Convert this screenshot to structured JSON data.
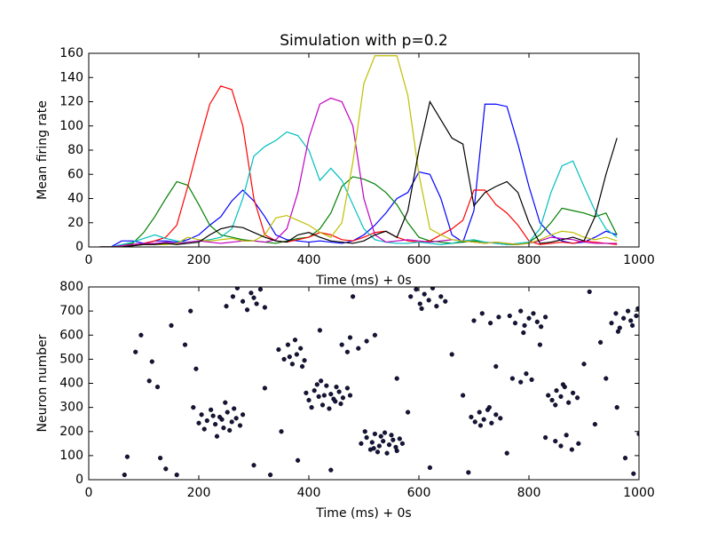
{
  "chart_data": [
    {
      "type": "line",
      "title": "Simulation with p=0.2",
      "x_label": "Time (ms) + 0s",
      "y_label": "Mean firing rate",
      "x": [
        20,
        40,
        60,
        80,
        100,
        120,
        140,
        160,
        180,
        200,
        220,
        240,
        260,
        280,
        300,
        320,
        340,
        360,
        380,
        400,
        420,
        440,
        460,
        480,
        500,
        520,
        540,
        560,
        580,
        600,
        620,
        640,
        660,
        680,
        700,
        720,
        740,
        760,
        780,
        800,
        820,
        840,
        860,
        880,
        900,
        920,
        940,
        960
      ],
      "series": [
        {
          "color": "#0000ff",
          "values": [
            0,
            0,
            5,
            5,
            3,
            5,
            5,
            4,
            6,
            10,
            18,
            25,
            38,
            47,
            38,
            25,
            10,
            6,
            5,
            4,
            5,
            4,
            3,
            5,
            10,
            18,
            28,
            40,
            45,
            62,
            60,
            40,
            10,
            4,
            30,
            118,
            118,
            116,
            85,
            50,
            20,
            10,
            5,
            3,
            4,
            8,
            13,
            10
          ]
        },
        {
          "color": "#008000",
          "values": [
            0,
            0,
            1,
            3,
            12,
            25,
            40,
            54,
            51,
            35,
            18,
            10,
            8,
            6,
            5,
            4,
            3,
            5,
            7,
            8,
            15,
            28,
            50,
            58,
            56,
            52,
            45,
            35,
            20,
            8,
            5,
            4,
            3,
            4,
            5,
            4,
            3,
            2,
            2,
            4,
            10,
            20,
            32,
            30,
            28,
            25,
            28,
            10
          ]
        },
        {
          "color": "#ff0000",
          "values": [
            0,
            0,
            1,
            2,
            3,
            5,
            8,
            18,
            50,
            85,
            118,
            133,
            130,
            100,
            40,
            10,
            5,
            4,
            6,
            8,
            12,
            10,
            6,
            5,
            8,
            12,
            13,
            8,
            5,
            4,
            5,
            10,
            15,
            22,
            47,
            47,
            35,
            28,
            18,
            5,
            2,
            3,
            4,
            3,
            5,
            4,
            3,
            2
          ]
        },
        {
          "color": "#00bfbf",
          "values": [
            0,
            0,
            2,
            4,
            7,
            10,
            7,
            5,
            4,
            5,
            6,
            8,
            15,
            40,
            75,
            83,
            88,
            95,
            92,
            80,
            55,
            65,
            55,
            35,
            15,
            6,
            4,
            3,
            3,
            4,
            3,
            2,
            3,
            5,
            6,
            4,
            3,
            2,
            3,
            4,
            15,
            45,
            67,
            71,
            50,
            30,
            15,
            8
          ]
        },
        {
          "color": "#bf00bf",
          "values": [
            0,
            0,
            1,
            2,
            3,
            3,
            4,
            3,
            4,
            5,
            4,
            3,
            4,
            5,
            5,
            4,
            6,
            15,
            45,
            90,
            118,
            123,
            120,
            100,
            40,
            10,
            4,
            5,
            6,
            5,
            4,
            5,
            6,
            5,
            4,
            3,
            4,
            3,
            2,
            3,
            5,
            8,
            7,
            6,
            4,
            3,
            3,
            3
          ]
        },
        {
          "color": "#bfbf00",
          "values": [
            0,
            0,
            0,
            1,
            2,
            2,
            2,
            3,
            8,
            6,
            5,
            6,
            7,
            5,
            5,
            10,
            24,
            26,
            22,
            18,
            12,
            8,
            20,
            70,
            135,
            158,
            158,
            158,
            125,
            60,
            15,
            10,
            6,
            5,
            4,
            3,
            4,
            3,
            2,
            3,
            6,
            10,
            13,
            12,
            8,
            6,
            8,
            5
          ]
        },
        {
          "color": "#000000",
          "values": [
            0,
            0,
            0,
            1,
            2,
            2,
            3,
            2,
            3,
            4,
            10,
            15,
            17,
            16,
            12,
            8,
            5,
            4,
            10,
            12,
            8,
            5,
            4,
            3,
            5,
            10,
            13,
            8,
            30,
            80,
            120,
            105,
            90,
            85,
            34,
            45,
            50,
            54,
            45,
            20,
            3,
            4,
            6,
            8,
            5,
            25,
            60,
            90
          ]
        }
      ],
      "xlim": [
        0,
        1000
      ],
      "xticks": [
        0,
        200,
        400,
        600,
        800,
        1000
      ],
      "ylim": [
        0,
        160
      ],
      "yticks": [
        0,
        20,
        40,
        60,
        80,
        100,
        120,
        140,
        160
      ]
    },
    {
      "type": "scatter",
      "x_label": "Time (ms) + 0s",
      "y_label": "Neuron number",
      "color": "#14143c",
      "x": [
        205,
        215,
        222,
        230,
        238,
        245,
        252,
        260,
        268,
        275,
        190,
        210,
        226,
        242,
        256,
        264,
        233,
        248,
        200,
        280,
        400,
        410,
        418,
        425,
        432,
        440,
        448,
        455,
        462,
        470,
        405,
        422,
        437,
        450,
        428,
        445,
        415,
        458,
        395,
        475,
        495,
        505,
        512,
        520,
        528,
        535,
        542,
        550,
        558,
        565,
        502,
        515,
        525,
        538,
        546,
        553,
        518,
        531,
        560,
        570,
        585,
        595,
        602,
        610,
        618,
        625,
        632,
        640,
        648,
        605,
        695,
        702,
        710,
        718,
        725,
        732,
        740,
        748,
        712,
        728,
        765,
        775,
        785,
        792,
        800,
        808,
        815,
        822,
        830,
        790,
        835,
        842,
        850,
        858,
        865,
        872,
        880,
        888,
        848,
        862,
        950,
        958,
        965,
        972,
        980,
        988,
        995,
        962,
        985,
        998,
        250,
        262,
        270,
        280,
        288,
        295,
        305,
        312,
        320,
        300,
        345,
        355,
        362,
        370,
        378,
        385,
        392,
        365,
        375,
        388,
        770,
        785,
        795,
        805,
        848,
        858,
        868,
        878,
        830,
        890,
        700,
        715,
        730,
        745,
        460,
        475,
        490,
        505,
        520,
        470,
        65,
        70,
        85,
        95,
        110,
        115,
        125,
        130,
        140,
        150,
        160,
        175,
        185,
        195,
        300,
        320,
        330,
        350,
        380,
        420,
        440,
        480,
        560,
        580,
        620,
        660,
        680,
        690,
        740,
        760,
        820,
        900,
        920,
        940,
        960,
        975,
        990,
        1000,
        910,
        930
      ],
      "values": [
        270,
        245,
        290,
        230,
        260,
        215,
        280,
        240,
        255,
        225,
        300,
        210,
        265,
        250,
        205,
        295,
        180,
        320,
        235,
        270,
        330,
        370,
        345,
        310,
        390,
        355,
        325,
        365,
        340,
        380,
        300,
        410,
        295,
        385,
        350,
        335,
        395,
        315,
        360,
        350,
        150,
        175,
        125,
        190,
        140,
        160,
        110,
        185,
        135,
        170,
        200,
        155,
        115,
        195,
        145,
        165,
        130,
        180,
        120,
        150,
        760,
        790,
        730,
        770,
        745,
        795,
        720,
        760,
        740,
        710,
        260,
        240,
        280,
        250,
        290,
        235,
        270,
        255,
        225,
        300,
        680,
        650,
        700,
        640,
        670,
        690,
        655,
        635,
        675,
        610,
        350,
        330,
        370,
        345,
        385,
        320,
        360,
        340,
        310,
        395,
        650,
        690,
        630,
        670,
        700,
        640,
        680,
        615,
        660,
        710,
        720,
        760,
        795,
        740,
        705,
        775,
        730,
        790,
        715,
        755,
        540,
        500,
        560,
        480,
        520,
        545,
        495,
        510,
        580,
        470,
        420,
        405,
        440,
        415,
        160,
        140,
        185,
        125,
        175,
        150,
        660,
        690,
        650,
        675,
        560,
        590,
        545,
        575,
        600,
        530,
        20,
        95,
        530,
        600,
        410,
        490,
        385,
        90,
        45,
        640,
        20,
        560,
        700,
        460,
        60,
        380,
        20,
        200,
        80,
        620,
        40,
        760,
        420,
        280,
        50,
        520,
        350,
        30,
        470,
        110,
        560,
        480,
        230,
        420,
        300,
        90,
        25,
        190,
        780,
        570
      ],
      "xlim": [
        0,
        1000
      ],
      "xticks": [
        0,
        200,
        400,
        600,
        800,
        1000
      ],
      "ylim": [
        0,
        800
      ],
      "yticks": [
        0,
        100,
        200,
        300,
        400,
        500,
        600,
        700,
        800
      ]
    }
  ]
}
